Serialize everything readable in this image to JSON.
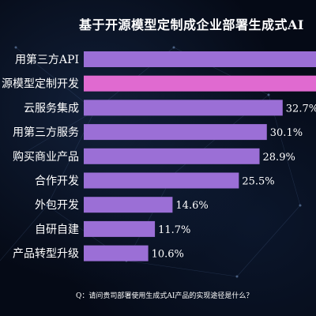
{
  "chart_data": {
    "type": "bar",
    "orientation": "horizontal",
    "title": "基于开源模型定制成企业部署生成式AI",
    "categories": [
      "用第三方API",
      "源模型定制开发",
      "云服务集成",
      "用第三方服务",
      "购买商业产品",
      "合作开发",
      "外包开发",
      "自研自建",
      "产品转型升级"
    ],
    "values": [
      null,
      null,
      32.7,
      30.1,
      28.9,
      25.5,
      14.6,
      11.7,
      10.6
    ],
    "value_labels": [
      "",
      "",
      "32.7%",
      "30.1%",
      "28.9%",
      "25.5%",
      "14.6%",
      "11.7%",
      "10.6%"
    ],
    "highlight_index": 1,
    "colors": {
      "bar": "#9b6fd6",
      "highlight": "#e06ad0"
    },
    "grid": false
  },
  "footer": {
    "question": "Q：请问贵司部署使用生成式AI产品的实现途径是什么？"
  }
}
